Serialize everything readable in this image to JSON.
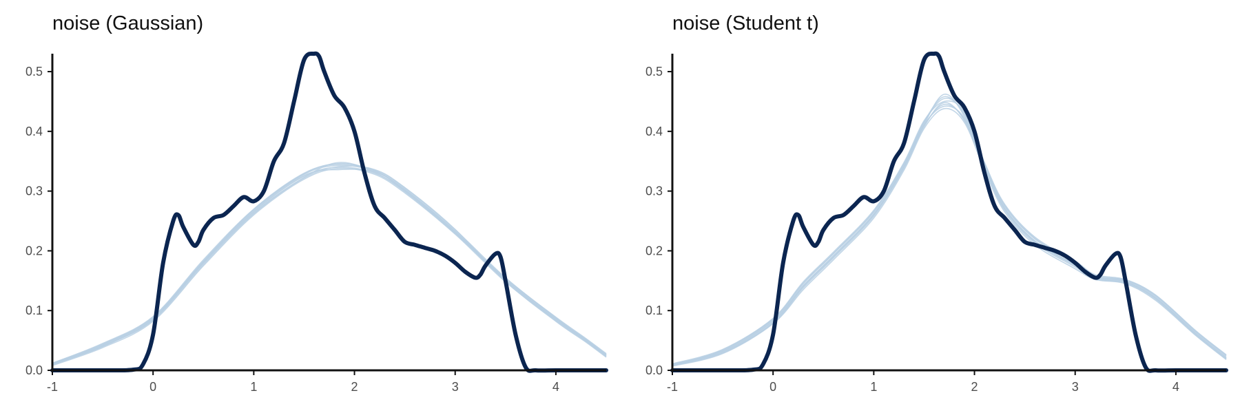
{
  "chart_data": [
    {
      "type": "line",
      "title": "noise (Gaussian)",
      "xlabel": "",
      "ylabel": "",
      "xlim": [
        -1,
        4.5
      ],
      "ylim": [
        0,
        0.53
      ],
      "xticks": [
        -1,
        0,
        1,
        2,
        3,
        4
      ],
      "xtick_labels": [
        "-1",
        "0",
        "1",
        "2",
        "3",
        "4"
      ],
      "yticks": [
        0,
        0.1,
        0.2,
        0.3,
        0.4,
        0.5
      ],
      "ytick_labels": [
        "0.0",
        "0.1",
        "0.2",
        "0.3",
        "0.4",
        "0.5"
      ],
      "grid": false,
      "observed": {
        "color": "#0b2550",
        "x": [
          -1,
          -0.5,
          -0.2,
          -0.1,
          0,
          0.1,
          0.2,
          0.25,
          0.3,
          0.4,
          0.45,
          0.5,
          0.6,
          0.7,
          0.8,
          0.9,
          1.0,
          1.1,
          1.2,
          1.3,
          1.4,
          1.5,
          1.6,
          1.65,
          1.7,
          1.8,
          1.9,
          2.0,
          2.1,
          2.2,
          2.3,
          2.4,
          2.5,
          2.6,
          2.7,
          2.8,
          2.9,
          3.0,
          3.1,
          3.2,
          3.25,
          3.3,
          3.4,
          3.45,
          3.5,
          3.6,
          3.7,
          3.8,
          4.0,
          4.5
        ],
        "y": [
          0,
          0,
          0.001,
          0.01,
          0.06,
          0.18,
          0.25,
          0.26,
          0.24,
          0.21,
          0.215,
          0.235,
          0.255,
          0.26,
          0.275,
          0.29,
          0.283,
          0.3,
          0.35,
          0.38,
          0.45,
          0.52,
          0.53,
          0.525,
          0.5,
          0.46,
          0.44,
          0.4,
          0.33,
          0.275,
          0.255,
          0.235,
          0.215,
          0.21,
          0.205,
          0.2,
          0.192,
          0.18,
          0.165,
          0.155,
          0.16,
          0.175,
          0.195,
          0.19,
          0.15,
          0.06,
          0.005,
          0,
          0,
          0
        ]
      },
      "replicates": {
        "color": "#b7cfe3",
        "x": [
          -1,
          -0.5,
          0,
          0.5,
          1,
          1.5,
          1.85,
          2.2,
          2.5,
          3,
          3.5,
          4,
          4.3,
          4.5
        ],
        "series": [
          [
            0.01,
            0.04,
            0.085,
            0.18,
            0.265,
            0.325,
            0.34,
            0.33,
            0.3,
            0.23,
            0.15,
            0.085,
            0.05,
            0.025
          ],
          [
            0.012,
            0.045,
            0.09,
            0.185,
            0.27,
            0.33,
            0.345,
            0.335,
            0.305,
            0.235,
            0.155,
            0.088,
            0.052,
            0.027
          ],
          [
            0.008,
            0.038,
            0.082,
            0.175,
            0.26,
            0.32,
            0.338,
            0.328,
            0.297,
            0.228,
            0.148,
            0.083,
            0.048,
            0.023
          ],
          [
            0.011,
            0.042,
            0.088,
            0.182,
            0.268,
            0.328,
            0.343,
            0.333,
            0.303,
            0.232,
            0.153,
            0.087,
            0.05,
            0.026
          ],
          [
            0.009,
            0.04,
            0.086,
            0.179,
            0.263,
            0.323,
            0.348,
            0.331,
            0.299,
            0.229,
            0.151,
            0.084,
            0.049,
            0.024
          ],
          [
            0.01,
            0.043,
            0.087,
            0.181,
            0.266,
            0.326,
            0.336,
            0.332,
            0.302,
            0.233,
            0.152,
            0.086,
            0.051,
            0.025
          ],
          [
            0.011,
            0.041,
            0.084,
            0.177,
            0.262,
            0.322,
            0.341,
            0.336,
            0.306,
            0.236,
            0.149,
            0.082,
            0.047,
            0.022
          ],
          [
            0.012,
            0.044,
            0.089,
            0.183,
            0.269,
            0.329,
            0.346,
            0.334,
            0.301,
            0.231,
            0.154,
            0.089,
            0.053,
            0.028
          ]
        ]
      }
    },
    {
      "type": "line",
      "title": "noise (Student t)",
      "xlabel": "",
      "ylabel": "",
      "xlim": [
        -1,
        4.5
      ],
      "ylim": [
        0,
        0.53
      ],
      "xticks": [
        -1,
        0,
        1,
        2,
        3,
        4
      ],
      "xtick_labels": [
        "-1",
        "0",
        "1",
        "2",
        "3",
        "4"
      ],
      "yticks": [
        0,
        0.1,
        0.2,
        0.3,
        0.4,
        0.5
      ],
      "ytick_labels": [
        "0.0",
        "0.1",
        "0.2",
        "0.3",
        "0.4",
        "0.5"
      ],
      "grid": false,
      "observed": {
        "color": "#0b2550",
        "x": [
          -1,
          -0.5,
          -0.2,
          -0.1,
          0,
          0.1,
          0.2,
          0.25,
          0.3,
          0.4,
          0.45,
          0.5,
          0.6,
          0.7,
          0.8,
          0.9,
          1.0,
          1.1,
          1.2,
          1.3,
          1.4,
          1.5,
          1.6,
          1.65,
          1.7,
          1.8,
          1.9,
          2.0,
          2.1,
          2.2,
          2.3,
          2.4,
          2.5,
          2.6,
          2.7,
          2.8,
          2.9,
          3.0,
          3.1,
          3.2,
          3.25,
          3.3,
          3.4,
          3.45,
          3.5,
          3.6,
          3.7,
          3.8,
          4.0,
          4.5
        ],
        "y": [
          0,
          0,
          0.001,
          0.01,
          0.06,
          0.18,
          0.25,
          0.26,
          0.24,
          0.21,
          0.215,
          0.235,
          0.255,
          0.26,
          0.275,
          0.29,
          0.283,
          0.3,
          0.35,
          0.38,
          0.45,
          0.52,
          0.53,
          0.525,
          0.5,
          0.46,
          0.44,
          0.4,
          0.33,
          0.275,
          0.255,
          0.235,
          0.215,
          0.21,
          0.205,
          0.2,
          0.192,
          0.18,
          0.165,
          0.155,
          0.16,
          0.175,
          0.195,
          0.19,
          0.15,
          0.06,
          0.005,
          0,
          0,
          0
        ]
      },
      "replicates": {
        "color": "#b7cfe3",
        "x": [
          -1,
          -0.5,
          0,
          0.3,
          0.6,
          1,
          1.3,
          1.5,
          1.7,
          1.9,
          2.1,
          2.3,
          2.6,
          3,
          3.2,
          3.5,
          3.8,
          4.2,
          4.5
        ],
        "series": [
          [
            0.008,
            0.03,
            0.08,
            0.14,
            0.19,
            0.26,
            0.34,
            0.41,
            0.445,
            0.42,
            0.34,
            0.27,
            0.215,
            0.175,
            0.155,
            0.148,
            0.12,
            0.06,
            0.02
          ],
          [
            0.01,
            0.033,
            0.085,
            0.145,
            0.195,
            0.265,
            0.345,
            0.415,
            0.455,
            0.43,
            0.345,
            0.275,
            0.22,
            0.18,
            0.158,
            0.15,
            0.124,
            0.064,
            0.024
          ],
          [
            0.007,
            0.028,
            0.078,
            0.135,
            0.185,
            0.255,
            0.335,
            0.405,
            0.438,
            0.415,
            0.335,
            0.265,
            0.21,
            0.17,
            0.152,
            0.145,
            0.117,
            0.058,
            0.018
          ],
          [
            0.009,
            0.032,
            0.083,
            0.142,
            0.192,
            0.262,
            0.342,
            0.412,
            0.462,
            0.425,
            0.342,
            0.272,
            0.217,
            0.177,
            0.156,
            0.149,
            0.122,
            0.062,
            0.022
          ],
          [
            0.011,
            0.035,
            0.087,
            0.148,
            0.198,
            0.268,
            0.348,
            0.418,
            0.45,
            0.433,
            0.348,
            0.278,
            0.223,
            0.183,
            0.16,
            0.152,
            0.126,
            0.066,
            0.026
          ],
          [
            0.008,
            0.029,
            0.079,
            0.138,
            0.188,
            0.258,
            0.338,
            0.408,
            0.448,
            0.418,
            0.338,
            0.268,
            0.213,
            0.173,
            0.153,
            0.146,
            0.119,
            0.059,
            0.019
          ],
          [
            0.01,
            0.031,
            0.082,
            0.141,
            0.191,
            0.261,
            0.341,
            0.411,
            0.442,
            0.422,
            0.341,
            0.271,
            0.216,
            0.176,
            0.154,
            0.147,
            0.121,
            0.061,
            0.021
          ],
          [
            0.009,
            0.034,
            0.086,
            0.146,
            0.196,
            0.266,
            0.346,
            0.416,
            0.458,
            0.428,
            0.346,
            0.276,
            0.221,
            0.181,
            0.157,
            0.151,
            0.125,
            0.065,
            0.025
          ]
        ]
      }
    }
  ]
}
